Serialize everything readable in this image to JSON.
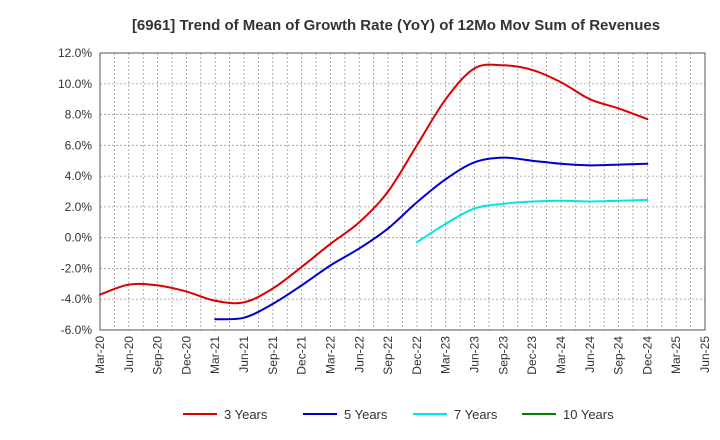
{
  "chart_data": {
    "type": "line",
    "title": "[6961]  Trend of Mean of Growth Rate (YoY) of 12Mo Mov Sum of Revenues",
    "xlabel": "",
    "ylabel": "",
    "ylim": [
      -6.0,
      12.0
    ],
    "y_ticks": [
      -6.0,
      -4.0,
      -2.0,
      0.0,
      2.0,
      4.0,
      6.0,
      8.0,
      10.0,
      12.0
    ],
    "y_tick_labels": [
      "-6.0%",
      "-4.0%",
      "-2.0%",
      "0.0%",
      "2.0%",
      "4.0%",
      "6.0%",
      "8.0%",
      "10.0%",
      "12.0%"
    ],
    "x_tick_labels": [
      "Mar-20",
      "Jun-20",
      "Sep-20",
      "Dec-20",
      "Mar-21",
      "Jun-21",
      "Sep-21",
      "Dec-21",
      "Mar-22",
      "Jun-22",
      "Sep-22",
      "Dec-22",
      "Mar-23",
      "Jun-23",
      "Sep-23",
      "Dec-23",
      "Mar-24",
      "Jun-24",
      "Sep-24",
      "Dec-24",
      "Mar-25",
      "Jun-25"
    ],
    "grid": true,
    "legend_position": "bottom",
    "series": [
      {
        "name": "3 Years",
        "color": "#dd0000",
        "points": [
          [
            0,
            -3.7
          ],
          [
            1,
            -3.05
          ],
          [
            2,
            -3.1
          ],
          [
            3,
            -3.5
          ],
          [
            4,
            -4.1
          ],
          [
            5,
            -4.2
          ],
          [
            6,
            -3.3
          ],
          [
            7,
            -1.9
          ],
          [
            8,
            -0.4
          ],
          [
            9,
            1.0
          ],
          [
            10,
            3.0
          ],
          [
            11,
            6.0
          ],
          [
            12,
            9.0
          ],
          [
            13,
            11.0
          ],
          [
            14,
            11.2
          ],
          [
            15,
            10.9
          ],
          [
            16,
            10.1
          ],
          [
            17,
            9.0
          ],
          [
            18,
            8.4
          ],
          [
            19,
            7.7
          ]
        ]
      },
      {
        "name": "5 Years",
        "color": "#0000cc",
        "points": [
          [
            4,
            -5.3
          ],
          [
            5,
            -5.2
          ],
          [
            6,
            -4.3
          ],
          [
            7,
            -3.1
          ],
          [
            8,
            -1.8
          ],
          [
            9,
            -0.7
          ],
          [
            10,
            0.6
          ],
          [
            11,
            2.3
          ],
          [
            12,
            3.8
          ],
          [
            13,
            4.9
          ],
          [
            14,
            5.2
          ],
          [
            15,
            5.0
          ],
          [
            16,
            4.8
          ],
          [
            17,
            4.7
          ],
          [
            18,
            4.75
          ],
          [
            19,
            4.8
          ]
        ]
      },
      {
        "name": "7 Years",
        "color": "#00e5e5",
        "points": [
          [
            11,
            -0.3
          ],
          [
            12,
            0.9
          ],
          [
            13,
            1.9
          ],
          [
            14,
            2.2
          ],
          [
            15,
            2.35
          ],
          [
            16,
            2.4
          ],
          [
            17,
            2.35
          ],
          [
            18,
            2.4
          ],
          [
            19,
            2.45
          ]
        ]
      },
      {
        "name": "10 Years",
        "color": "#008000",
        "points": []
      }
    ]
  }
}
